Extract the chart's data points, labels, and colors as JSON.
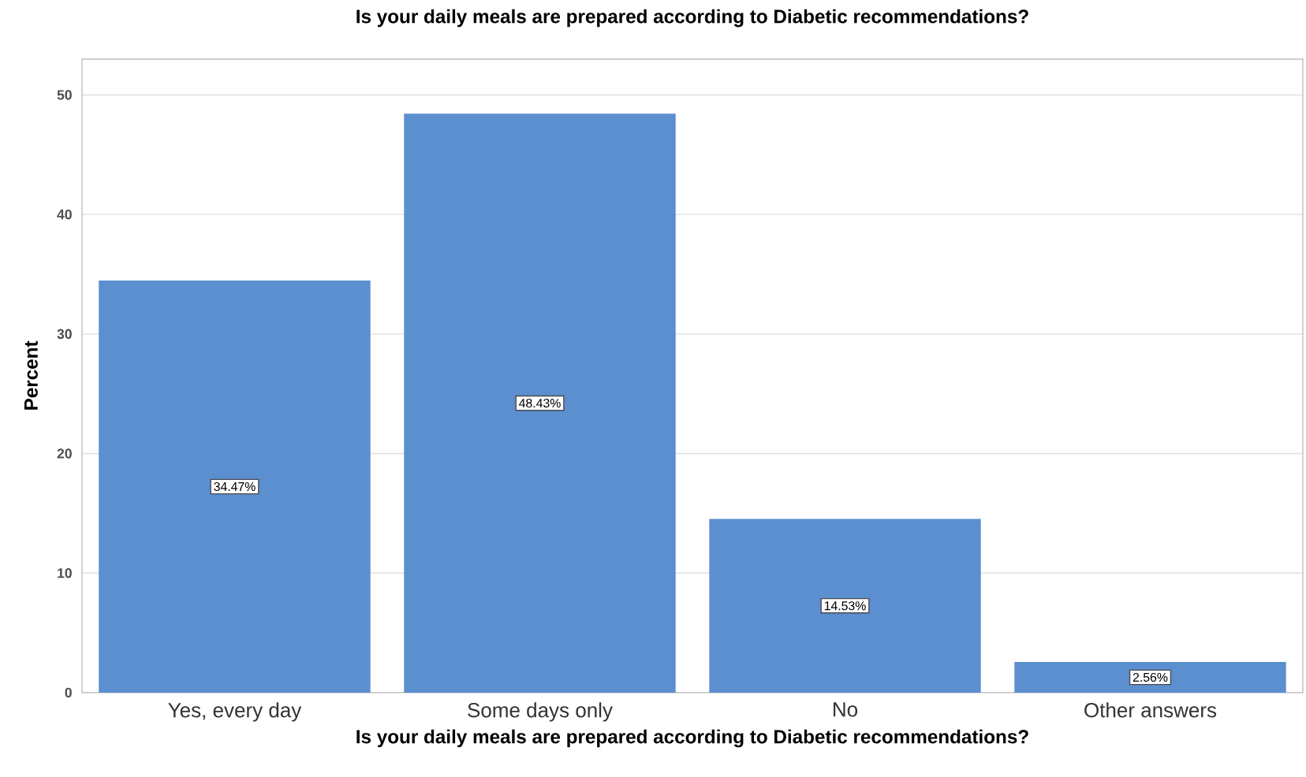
{
  "chart_data": {
    "type": "bar",
    "title": "Is your daily meals are prepared according to Diabetic recommendations?",
    "xlabel": "Is your daily meals are prepared according to Diabetic recommendations?",
    "ylabel": "Percent",
    "categories": [
      "Yes, every day",
      "Some days only",
      "No",
      "Other answers"
    ],
    "values": [
      34.47,
      48.43,
      14.53,
      2.56
    ],
    "value_labels": [
      "34.47%",
      "48.43%",
      "14.53%",
      "2.56%"
    ],
    "color": "#5b8fd0",
    "ylim": [
      0,
      53
    ],
    "yticks": [
      0,
      10,
      20,
      30,
      40,
      50
    ],
    "grid": "y"
  }
}
